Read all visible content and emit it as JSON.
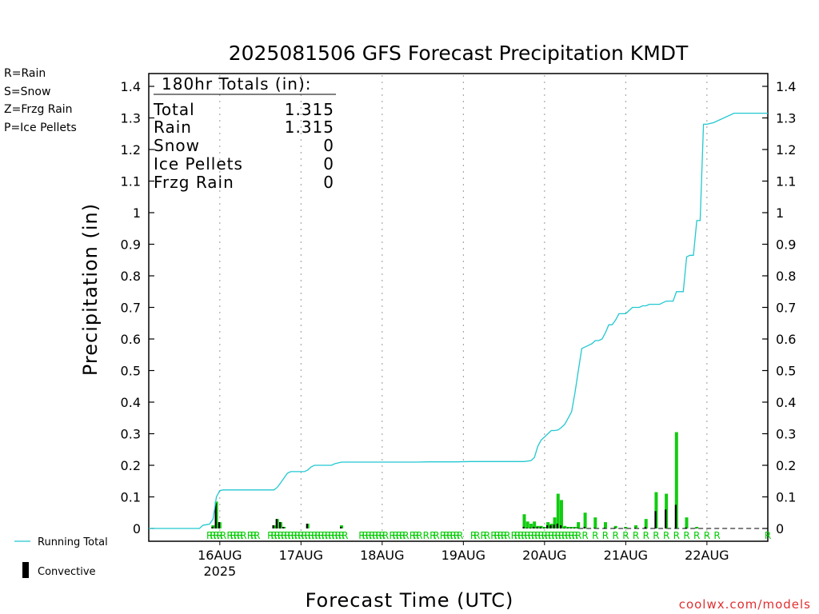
{
  "chart_data": {
    "type": "bar",
    "title": "2025081506 GFS Forecast Precipitation KMDT",
    "ylabel": "Precipitation (in)",
    "xlabel": "Forecast Time (UTC)",
    "ylim": [
      0,
      1.4
    ],
    "y_ticks": [
      "0",
      "0.1",
      "0.2",
      "0.3",
      "0.4",
      "0.5",
      "0.6",
      "0.7",
      "0.8",
      "0.9",
      "1",
      "1.1",
      "1.2",
      "1.3",
      "1.4"
    ],
    "x_ticks": [
      {
        "label": "16AUG",
        "sub": "2025",
        "hour": 18
      },
      {
        "label": "17AUG",
        "sub": "",
        "hour": 42
      },
      {
        "label": "18AUG",
        "sub": "",
        "hour": 66
      },
      {
        "label": "19AUG",
        "sub": "",
        "hour": 90
      },
      {
        "label": "20AUG",
        "sub": "",
        "hour": 114
      },
      {
        "label": "21AUG",
        "sub": "",
        "hour": 138
      },
      {
        "label": "22AUG",
        "sub": "",
        "hour": 162
      }
    ],
    "xlim_hours": [
      -3,
      180
    ],
    "totals_box": {
      "header": "180hr Totals (in):",
      "rows": [
        {
          "label": "Total",
          "value": "1.315"
        },
        {
          "label": "Rain",
          "value": "1.315"
        },
        {
          "label": "Snow",
          "value": "0"
        },
        {
          "label": "Ice Pellets",
          "value": "0"
        },
        {
          "label": "Frzg Rain",
          "value": "0"
        }
      ]
    },
    "precip_type_legend": [
      {
        "text": "R=Rain",
        "color": "#22cc22"
      },
      {
        "text": "S=Snow",
        "color": "#3355ee"
      },
      {
        "text": "Z=Frzg Rain",
        "color": "#f08030"
      },
      {
        "text": "P=Ice Pellets",
        "color": "#e0208a"
      }
    ],
    "series_legend": {
      "running_total": "Running Total",
      "convective": "Convective"
    },
    "colors": {
      "running_total": "#22c8d0",
      "precip": "#11cc11",
      "convective": "#000000",
      "grid": "#999999"
    },
    "running_total": {
      "x_hours": [
        -3,
        12,
        13,
        14,
        15,
        16,
        17,
        18,
        19,
        20,
        21,
        22,
        23,
        24,
        25,
        26,
        27,
        28,
        29,
        30,
        31,
        32,
        33,
        34,
        35,
        36,
        37,
        38,
        39,
        40,
        41,
        42,
        43,
        44,
        45,
        46,
        48,
        50,
        51,
        52,
        54,
        56,
        58,
        60,
        62,
        64,
        66,
        68,
        70,
        72,
        76,
        80,
        84,
        88,
        92,
        96,
        100,
        104,
        108,
        110,
        111,
        112,
        113,
        114,
        115,
        116,
        117,
        118,
        119,
        120,
        121,
        122,
        123,
        124,
        125,
        126,
        127,
        128,
        129,
        130,
        131,
        132,
        133,
        134,
        135,
        136,
        137,
        138,
        139,
        140,
        141,
        142,
        143,
        144,
        145,
        146,
        147,
        148,
        149,
        150,
        151,
        152,
        153,
        154,
        155,
        156,
        157,
        158,
        159,
        160,
        161,
        162,
        164,
        170,
        180
      ],
      "values": [
        0,
        0,
        0.01,
        0.012,
        0.014,
        0.03,
        0.1,
        0.12,
        0.122,
        0.122,
        0.122,
        0.122,
        0.122,
        0.122,
        0.122,
        0.122,
        0.122,
        0.122,
        0.122,
        0.122,
        0.122,
        0.122,
        0.122,
        0.122,
        0.13,
        0.145,
        0.16,
        0.175,
        0.18,
        0.18,
        0.18,
        0.18,
        0.18,
        0.185,
        0.195,
        0.2,
        0.2,
        0.2,
        0.2,
        0.205,
        0.21,
        0.21,
        0.21,
        0.21,
        0.21,
        0.21,
        0.21,
        0.21,
        0.21,
        0.21,
        0.21,
        0.211,
        0.211,
        0.211,
        0.212,
        0.212,
        0.212,
        0.212,
        0.212,
        0.215,
        0.225,
        0.26,
        0.28,
        0.29,
        0.3,
        0.31,
        0.31,
        0.312,
        0.32,
        0.33,
        0.35,
        0.37,
        0.43,
        0.5,
        0.57,
        0.575,
        0.58,
        0.585,
        0.595,
        0.595,
        0.6,
        0.62,
        0.645,
        0.645,
        0.66,
        0.68,
        0.68,
        0.68,
        0.69,
        0.7,
        0.7,
        0.7,
        0.705,
        0.705,
        0.71,
        0.71,
        0.71,
        0.71,
        0.715,
        0.72,
        0.72,
        0.72,
        0.75,
        0.75,
        0.75,
        0.86,
        0.865,
        0.865,
        0.975,
        0.975,
        1.28,
        1.28,
        1.285,
        1.315,
        1.315
      ]
    },
    "bars": {
      "x_hours": [
        16,
        17,
        18,
        34,
        35,
        36,
        37,
        44,
        54,
        108,
        109,
        110,
        111,
        112,
        113,
        114,
        115,
        116,
        117,
        118,
        119,
        120,
        121,
        122,
        123,
        124,
        126,
        129,
        132,
        135,
        138,
        141,
        144,
        147,
        150,
        153,
        156,
        159
      ],
      "total": [
        0.01,
        0.085,
        0.02,
        0.01,
        0.03,
        0.02,
        0.005,
        0.015,
        0.01,
        0.045,
        0.022,
        0.015,
        0.022,
        0.008,
        0.008,
        0.005,
        0.02,
        0.015,
        0.035,
        0.11,
        0.09,
        0.008,
        0.005,
        0.005,
        0.005,
        0.02,
        0.05,
        0.035,
        0.02,
        0.008,
        0.005,
        0.01,
        0.03,
        0.115,
        0.11,
        0.305,
        0.035,
        0.005
      ],
      "convective": [
        0.005,
        0.08,
        0.02,
        0.01,
        0.03,
        0.02,
        0.005,
        0.015,
        0.005,
        0.005,
        0.002,
        0.002,
        0.005,
        0.004,
        0.004,
        0.002,
        0.01,
        0.01,
        0.012,
        0.015,
        0.01,
        0.002,
        0.002,
        0.002,
        0.002,
        0.002,
        0.005,
        0.002,
        0.002,
        0.002,
        0.002,
        0.002,
        0.005,
        0.055,
        0.06,
        0.075,
        0.003,
        0.001
      ]
    },
    "ptype_marks": {
      "label": "R",
      "hours": [
        15,
        16,
        17,
        18,
        19,
        21,
        22,
        23,
        24,
        25,
        27,
        28,
        29,
        33,
        34,
        35,
        36,
        37,
        38,
        39,
        40,
        41,
        42,
        43,
        44,
        45,
        46,
        47,
        48,
        49,
        50,
        51,
        52,
        53,
        54,
        55,
        60,
        61,
        62,
        63,
        64,
        65,
        66,
        67,
        69,
        70,
        71,
        72,
        73,
        75,
        76,
        77,
        79,
        81,
        82,
        84,
        85,
        86,
        87,
        88,
        89,
        93,
        94,
        96,
        97,
        99,
        100,
        101,
        102,
        103,
        105,
        106,
        107,
        108,
        109,
        110,
        111,
        112,
        113,
        114,
        115,
        116,
        117,
        118,
        119,
        120,
        121,
        122,
        123,
        124,
        126,
        129,
        132,
        135,
        138,
        141,
        144,
        147,
        150,
        153,
        156,
        159,
        162,
        165,
        180
      ]
    }
  },
  "credit": "coolwx.com/models"
}
